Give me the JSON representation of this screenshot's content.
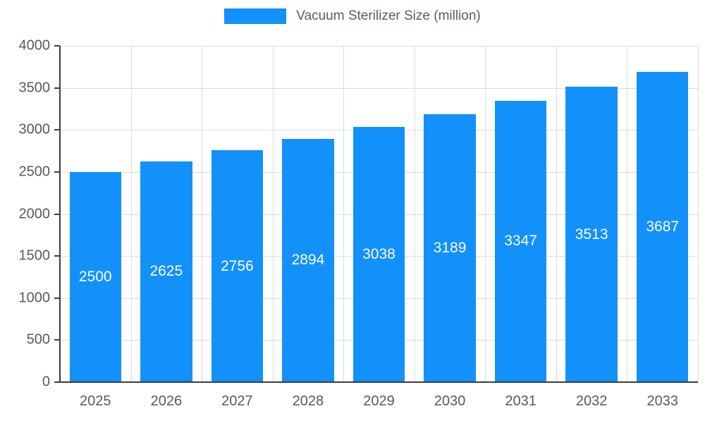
{
  "legend": {
    "label": "Vacuum Sterilizer Size (million)"
  },
  "chart_data": {
    "type": "bar",
    "title": "Vacuum Sterilizer Size (million)",
    "categories": [
      "2025",
      "2026",
      "2027",
      "2028",
      "2029",
      "2030",
      "2031",
      "2032",
      "2033"
    ],
    "values": [
      2500,
      2625,
      2756,
      2894,
      3038,
      3189,
      3347,
      3513,
      3687
    ],
    "xlabel": "",
    "ylabel": "",
    "ylim": [
      0,
      4000
    ],
    "ytick_step": 500,
    "grid": true,
    "legend_position": "top",
    "bar_color": "#1291fb",
    "value_label_color": "#ffffff",
    "axis_color": "#3c3c3c",
    "grid_color": "#dcdcdc",
    "tick_label_color": "#595959"
  }
}
